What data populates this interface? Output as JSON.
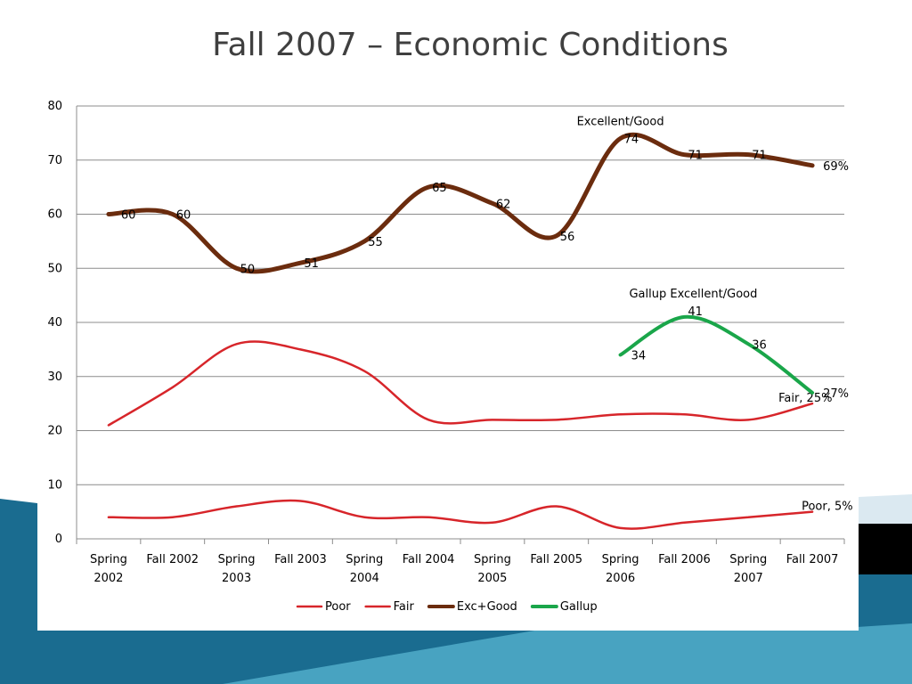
{
  "slide": {
    "title": "Fall 2007 – Economic Conditions"
  },
  "colors": {
    "poor": "#d7252a",
    "fair": "#d7252a",
    "exc_good": "#6b2c0e",
    "gallup": "#1aa64a",
    "grid": "#8c8c8c",
    "title": "#3f3f3f",
    "band_dark": "#1a6c90",
    "band_light": "#5dbbd6",
    "block_black": "#000000",
    "block_pale": "#dbe9f1"
  },
  "chart_data": {
    "type": "line",
    "title": "",
    "xlabel": "",
    "ylabel": "",
    "ylim": [
      0,
      80
    ],
    "yticks": [
      "0",
      "10",
      "20",
      "30",
      "40",
      "50",
      "60",
      "70",
      "80"
    ],
    "grid": true,
    "legend_position": "bottom",
    "categories": [
      [
        "Spring",
        "2002"
      ],
      [
        "Fall  2002"
      ],
      [
        "Spring",
        "2003"
      ],
      [
        "Fall  2003"
      ],
      [
        "Spring",
        "2004"
      ],
      [
        "Fall 2004"
      ],
      [
        "Spring",
        "2005"
      ],
      [
        "Fall 2005"
      ],
      [
        "Spring",
        "2006"
      ],
      [
        "Fall 2006"
      ],
      [
        "Spring",
        "2007"
      ],
      [
        "Fall 2007"
      ]
    ],
    "series": [
      {
        "name": "Poor",
        "color": "#d7252a",
        "width": 2.5,
        "values": [
          4,
          4,
          6,
          7,
          4,
          4,
          3,
          6,
          2,
          3,
          4,
          5
        ],
        "labels": {
          "11": "Poor, 5%"
        }
      },
      {
        "name": "Fair",
        "color": "#d7252a",
        "width": 2.5,
        "values": [
          21,
          28,
          36,
          35,
          31,
          22,
          22,
          22,
          23,
          23,
          22,
          25
        ],
        "labels": {
          "11": "Fair, 25%"
        }
      },
      {
        "name": "Exc+Good",
        "color": "#6b2c0e",
        "width": 5,
        "values": [
          60,
          60,
          50,
          51,
          55,
          65,
          62,
          56,
          74,
          71,
          71,
          69
        ],
        "labels": {
          "0": "60",
          "1": "60",
          "2": "50",
          "3": "51",
          "4": "55",
          "5": "65",
          "6": "62",
          "7": "56",
          "8": "74",
          "9": "71",
          "10": "71",
          "11": "69%"
        }
      },
      {
        "name": "Gallup",
        "color": "#1aa64a",
        "width": 4,
        "values": [
          null,
          null,
          null,
          null,
          null,
          null,
          null,
          null,
          34,
          41,
          36,
          27
        ],
        "labels": {
          "8": "34",
          "9": "41",
          "10": "36",
          "11": "27%"
        }
      }
    ],
    "annotations": [
      {
        "text": "Excellent/Good",
        "x_index": 8,
        "y": 76.5
      },
      {
        "text": "Gallup Excellent/Good",
        "x_index": 9,
        "y": 44.6
      }
    ]
  }
}
